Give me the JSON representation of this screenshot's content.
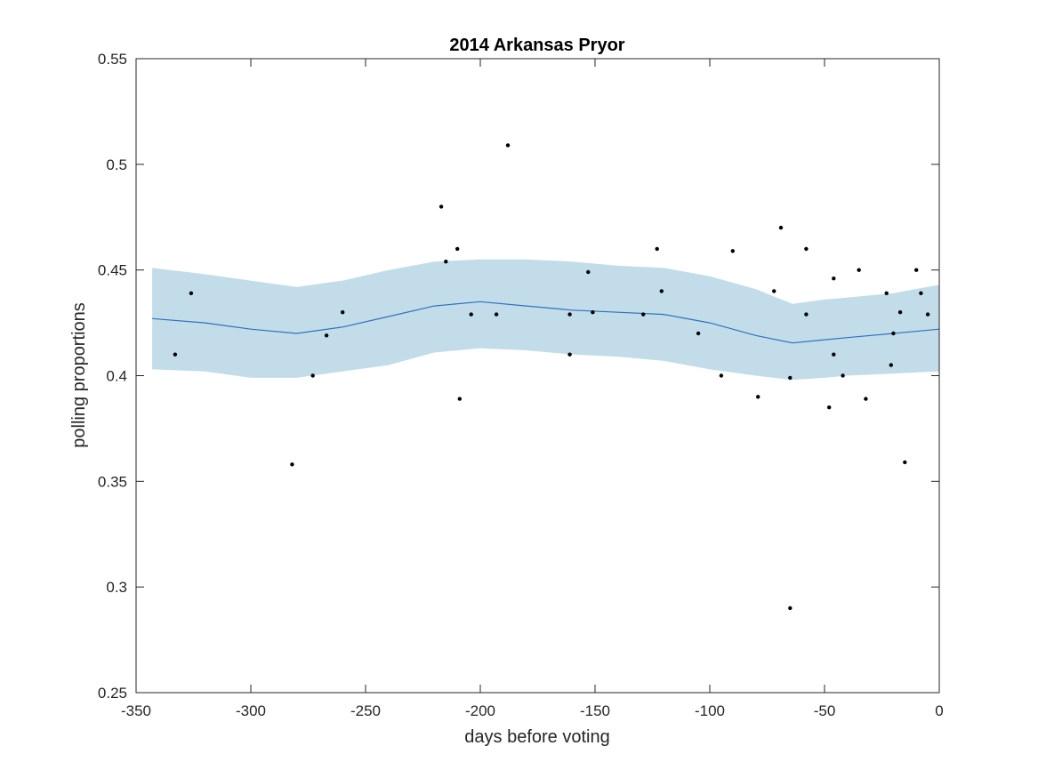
{
  "chart_data": {
    "type": "scatter",
    "title": "2014 Arkansas Pryor",
    "xlabel": "days before voting",
    "ylabel": "polling proportions",
    "xlim": [
      -350,
      0
    ],
    "ylim": [
      0.25,
      0.55
    ],
    "xticks": [
      -350,
      -300,
      -250,
      -200,
      -150,
      -100,
      -50,
      0
    ],
    "xtick_labels": [
      "-350",
      "-300",
      "-250",
      "-200",
      "-150",
      "-100",
      "-50",
      "0"
    ],
    "yticks": [
      0.25,
      0.3,
      0.35,
      0.4,
      0.45,
      0.5,
      0.55
    ],
    "ytick_labels": [
      "0.25",
      "0.3",
      "0.35",
      "0.4",
      "0.45",
      "0.5",
      "0.55"
    ],
    "grid": false,
    "colors": {
      "band": "#c2dcea",
      "trend": "#2f72bd",
      "points": "#000000",
      "axes": "#262626"
    },
    "trend": {
      "x": [
        -343,
        -320,
        -300,
        -280,
        -260,
        -240,
        -220,
        -200,
        -180,
        -160,
        -140,
        -120,
        -100,
        -80,
        -64,
        -50,
        -40,
        -20,
        0
      ],
      "y": [
        0.427,
        0.425,
        0.422,
        0.42,
        0.423,
        0.428,
        0.433,
        0.435,
        0.433,
        0.431,
        0.43,
        0.429,
        0.425,
        0.419,
        0.4155,
        0.417,
        0.418,
        0.42,
        0.422
      ]
    },
    "band": {
      "x": [
        -343,
        -320,
        -300,
        -280,
        -260,
        -240,
        -220,
        -200,
        -180,
        -160,
        -140,
        -120,
        -100,
        -80,
        -64,
        -50,
        -40,
        -20,
        0
      ],
      "upper": [
        0.451,
        0.448,
        0.445,
        0.442,
        0.445,
        0.45,
        0.454,
        0.455,
        0.455,
        0.454,
        0.452,
        0.451,
        0.447,
        0.441,
        0.434,
        0.436,
        0.437,
        0.439,
        0.443
      ],
      "lower": [
        0.403,
        0.402,
        0.399,
        0.399,
        0.402,
        0.405,
        0.411,
        0.413,
        0.412,
        0.41,
        0.409,
        0.407,
        0.403,
        0.4,
        0.398,
        0.399,
        0.4,
        0.401,
        0.402
      ]
    },
    "points": [
      {
        "x": -333,
        "y": 0.41
      },
      {
        "x": -326,
        "y": 0.439
      },
      {
        "x": -282,
        "y": 0.358
      },
      {
        "x": -273,
        "y": 0.4
      },
      {
        "x": -267,
        "y": 0.419
      },
      {
        "x": -260,
        "y": 0.43
      },
      {
        "x": -217,
        "y": 0.48
      },
      {
        "x": -215,
        "y": 0.454
      },
      {
        "x": -210,
        "y": 0.46
      },
      {
        "x": -209,
        "y": 0.389
      },
      {
        "x": -204,
        "y": 0.429
      },
      {
        "x": -193,
        "y": 0.429
      },
      {
        "x": -188,
        "y": 0.509
      },
      {
        "x": -161,
        "y": 0.429
      },
      {
        "x": -161,
        "y": 0.41
      },
      {
        "x": -153,
        "y": 0.449
      },
      {
        "x": -151,
        "y": 0.43
      },
      {
        "x": -129,
        "y": 0.429
      },
      {
        "x": -123,
        "y": 0.46
      },
      {
        "x": -121,
        "y": 0.44
      },
      {
        "x": -105,
        "y": 0.42
      },
      {
        "x": -95,
        "y": 0.4
      },
      {
        "x": -90,
        "y": 0.459
      },
      {
        "x": -79,
        "y": 0.39
      },
      {
        "x": -72,
        "y": 0.44
      },
      {
        "x": -69,
        "y": 0.47
      },
      {
        "x": -65,
        "y": 0.399
      },
      {
        "x": -65,
        "y": 0.29
      },
      {
        "x": -58,
        "y": 0.46
      },
      {
        "x": -58,
        "y": 0.429
      },
      {
        "x": -48,
        "y": 0.385
      },
      {
        "x": -46,
        "y": 0.41
      },
      {
        "x": -46,
        "y": 0.446
      },
      {
        "x": -42,
        "y": 0.4
      },
      {
        "x": -35,
        "y": 0.45
      },
      {
        "x": -32,
        "y": 0.389
      },
      {
        "x": -23,
        "y": 0.439
      },
      {
        "x": -21,
        "y": 0.405
      },
      {
        "x": -20,
        "y": 0.42
      },
      {
        "x": -17,
        "y": 0.43
      },
      {
        "x": -15,
        "y": 0.359
      },
      {
        "x": -10,
        "y": 0.45
      },
      {
        "x": -8,
        "y": 0.439
      },
      {
        "x": -5,
        "y": 0.429
      }
    ]
  }
}
